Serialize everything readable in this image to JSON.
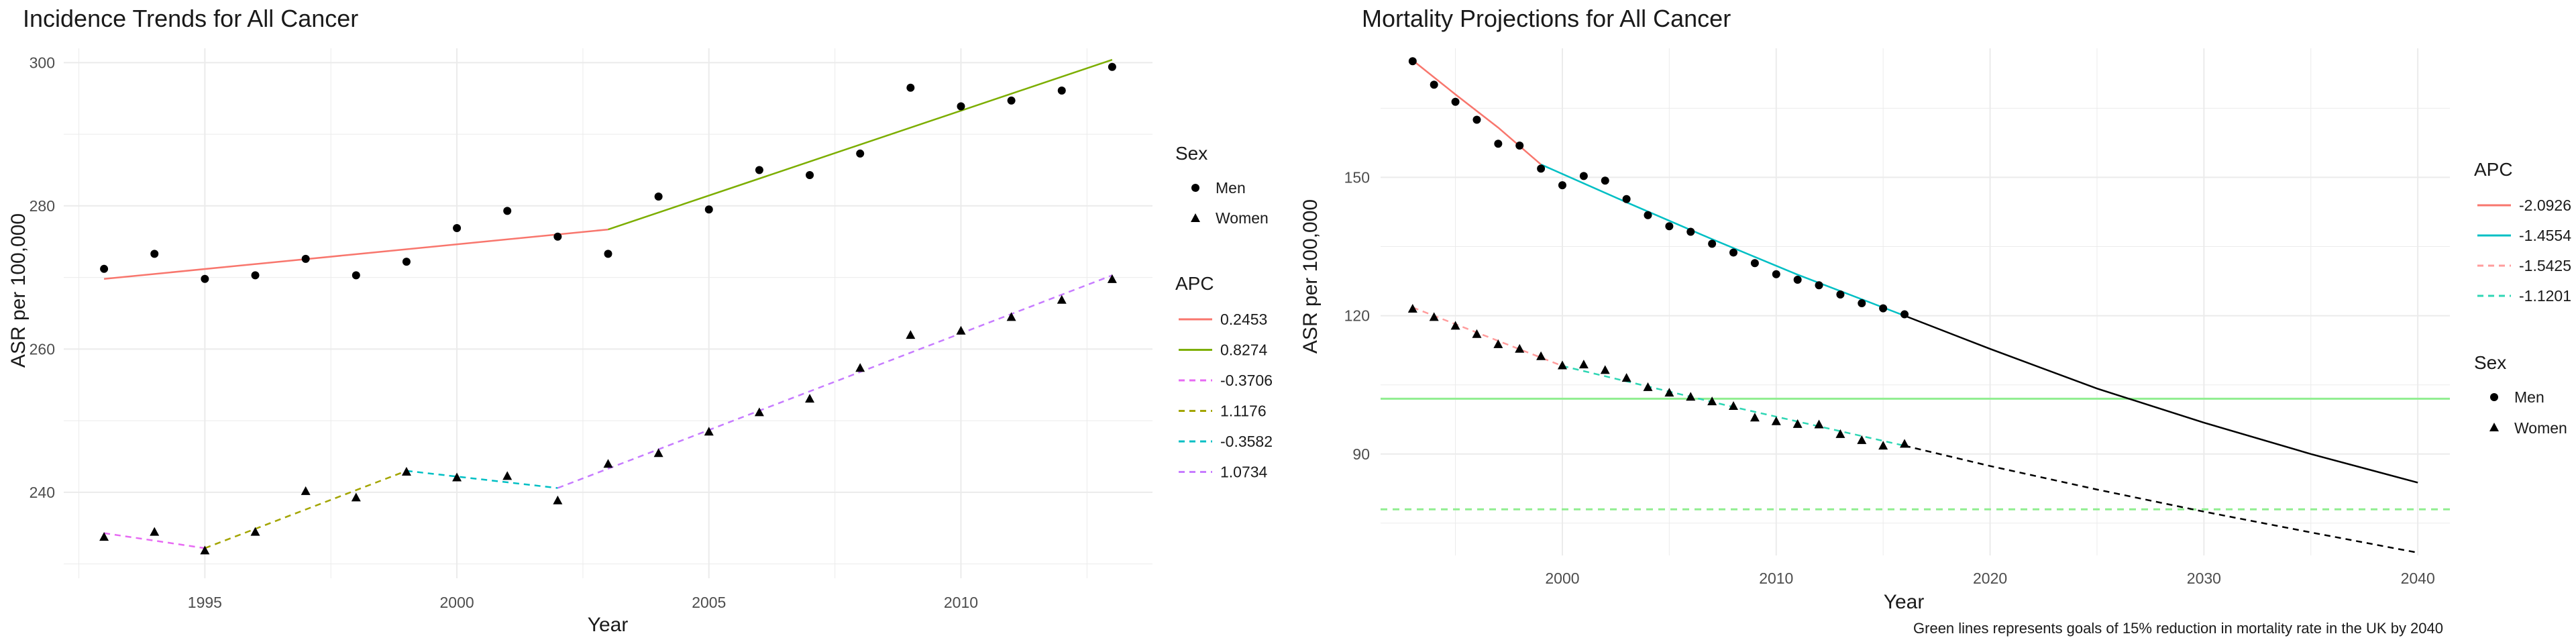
{
  "colors": {
    "seg1": "#F8766D",
    "seg2": "#7CAE00",
    "seg3": "#E76BF3",
    "seg4": "#A3A500",
    "seg5": "#00BFC4",
    "seg6": "#C77CFF",
    "proj1": "#F8766D",
    "proj2": "#00BFC4",
    "proj3": "#FF9C9C",
    "proj4": "#2FD6B4",
    "goal": "#90EE90",
    "forecast": "#000000"
  },
  "chart_data": [
    {
      "type": "scatter",
      "title": "Incidence Trends for All Cancer",
      "xlabel": "Year",
      "ylabel": "ASR per 100,000",
      "xlim": [
        1992.2,
        2013.8
      ],
      "ylim": [
        228,
        302
      ],
      "xticks": [
        1995,
        2000,
        2005,
        2010
      ],
      "yticks": [
        240,
        260,
        280,
        300
      ],
      "grid": true,
      "legend_position": "right",
      "legends": {
        "sex": {
          "title": "Sex",
          "items": [
            "Men",
            "Women"
          ]
        },
        "apc": {
          "title": "APC",
          "items": [
            {
              "label": "0.2453",
              "color_key": "seg1",
              "dashed": false
            },
            {
              "label": "0.8274",
              "color_key": "seg2",
              "dashed": false
            },
            {
              "label": "-0.3706",
              "color_key": "seg3",
              "dashed": true
            },
            {
              "label": "1.1176",
              "color_key": "seg4",
              "dashed": true
            },
            {
              "label": "-0.3582",
              "color_key": "seg5",
              "dashed": true
            },
            {
              "label": "1.0734",
              "color_key": "seg6",
              "dashed": true
            }
          ]
        }
      },
      "series": [
        {
          "name": "Men",
          "marker": "circle",
          "x": [
            1993,
            1994,
            1995,
            1996,
            1997,
            1998,
            1999,
            2000,
            2001,
            2002,
            2003,
            2004,
            2005,
            2006,
            2007,
            2008,
            2009,
            2010,
            2011,
            2012,
            2013
          ],
          "y": [
            271.2,
            273.3,
            269.8,
            270.3,
            272.6,
            270.3,
            272.2,
            276.9,
            279.3,
            275.7,
            273.3,
            281.3,
            279.5,
            285.0,
            284.3,
            287.3,
            296.5,
            293.9,
            294.7,
            296.1,
            299.4
          ]
        },
        {
          "name": "Women",
          "marker": "triangle",
          "x": [
            1993,
            1994,
            1995,
            1996,
            1997,
            1998,
            1999,
            2000,
            2001,
            2002,
            2003,
            2004,
            2005,
            2006,
            2007,
            2008,
            2009,
            2010,
            2011,
            2012,
            2013
          ],
          "y": [
            233.7,
            234.4,
            231.8,
            234.4,
            240.1,
            239.2,
            242.8,
            242.0,
            242.2,
            238.8,
            243.9,
            245.4,
            248.4,
            251.1,
            253.0,
            257.3,
            261.9,
            262.5,
            264.4,
            266.8,
            269.7
          ]
        }
      ],
      "fit_lines": [
        {
          "label": "0.2453",
          "color_key": "seg1",
          "dashed": false,
          "points": [
            [
              1993,
              269.8
            ],
            [
              2003,
              276.7
            ]
          ]
        },
        {
          "label": "0.8274",
          "color_key": "seg2",
          "dashed": false,
          "points": [
            [
              2003,
              276.7
            ],
            [
              2013,
              300.4
            ]
          ]
        },
        {
          "label": "-0.3706",
          "color_key": "seg3",
          "dashed": true,
          "points": [
            [
              1993,
              234.3
            ],
            [
              1995,
              232.2
            ]
          ]
        },
        {
          "label": "1.1176",
          "color_key": "seg4",
          "dashed": true,
          "points": [
            [
              1995,
              232.2
            ],
            [
              1999,
              243.0
            ]
          ]
        },
        {
          "label": "-0.3582",
          "color_key": "seg5",
          "dashed": true,
          "points": [
            [
              1999,
              243.0
            ],
            [
              2002,
              240.6
            ]
          ]
        },
        {
          "label": "1.0734",
          "color_key": "seg6",
          "dashed": true,
          "points": [
            [
              2002,
              240.6
            ],
            [
              2013,
              270.3
            ]
          ]
        }
      ]
    },
    {
      "type": "scatter",
      "title": "Mortality Projections for All Cancer",
      "xlabel": "Year",
      "ylabel": "ASR per 100,000",
      "caption": "Green lines represents goals of 15% reduction in mortality rate in the UK by 2040",
      "xlim": [
        1991.5,
        2041.5
      ],
      "ylim": [
        68,
        178
      ],
      "xticks": [
        2000,
        2010,
        2020,
        2030,
        2040
      ],
      "yticks": [
        90,
        120,
        150
      ],
      "grid": true,
      "legend_position": "right",
      "legends": {
        "apc": {
          "title": "APC",
          "items": [
            {
              "label": "-2.0926",
              "color_key": "proj1",
              "dashed": false
            },
            {
              "label": "-1.4554",
              "color_key": "proj2",
              "dashed": false
            },
            {
              "label": "-1.5425",
              "color_key": "proj3",
              "dashed": true
            },
            {
              "label": "-1.1201",
              "color_key": "proj4",
              "dashed": true
            }
          ]
        },
        "sex": {
          "title": "Sex",
          "items": [
            "Men",
            "Women"
          ]
        }
      },
      "series": [
        {
          "name": "Men",
          "marker": "circle",
          "x": [
            1993,
            1994,
            1995,
            1996,
            1997,
            1998,
            1999,
            2000,
            2001,
            2002,
            2003,
            2004,
            2005,
            2006,
            2007,
            2008,
            2009,
            2010,
            2011,
            2012,
            2013,
            2014,
            2015,
            2016
          ],
          "y": [
            175.2,
            170.1,
            166.4,
            162.5,
            157.3,
            156.9,
            151.9,
            148.3,
            150.3,
            149.3,
            145.3,
            141.8,
            139.4,
            138.2,
            135.6,
            133.7,
            131.4,
            129.0,
            127.8,
            126.6,
            124.6,
            122.7,
            121.6,
            120.3
          ]
        },
        {
          "name": "Women",
          "marker": "triangle",
          "x": [
            1993,
            1994,
            1995,
            1996,
            1997,
            1998,
            1999,
            2000,
            2001,
            2002,
            2003,
            2004,
            2005,
            2006,
            2007,
            2008,
            2009,
            2010,
            2011,
            2012,
            2013,
            2014,
            2015,
            2016
          ],
          "y": [
            121.4,
            119.6,
            117.7,
            115.9,
            113.7,
            112.7,
            111.1,
            109.1,
            109.3,
            108.1,
            106.4,
            104.4,
            103.2,
            102.3,
            101.3,
            100.3,
            97.8,
            97.0,
            96.4,
            96.3,
            94.2,
            92.9,
            91.7,
            92.1
          ]
        }
      ],
      "fit_lines": [
        {
          "label": "-2.0926",
          "color_key": "proj1",
          "dashed": false,
          "points": [
            [
              1993,
              175.4
            ],
            [
              1995,
              168.0
            ],
            [
              1997,
              160.8
            ],
            [
              1999,
              152.8
            ]
          ]
        },
        {
          "label": "-1.4554",
          "color_key": "proj2",
          "dashed": false,
          "points": [
            [
              1999,
              152.8
            ],
            [
              2003,
              144.6
            ],
            [
              2007,
              136.6
            ],
            [
              2011,
              128.9
            ],
            [
              2016,
              120.0
            ]
          ]
        },
        {
          "label": "-1.5425",
          "color_key": "proj3",
          "dashed": true,
          "points": [
            [
              1993,
              121.8
            ],
            [
              2000,
              109.1
            ]
          ]
        },
        {
          "label": "-1.1201",
          "color_key": "proj4",
          "dashed": true,
          "points": [
            [
              2000,
              109.1
            ],
            [
              2008,
              100.2
            ],
            [
              2016,
              91.8
            ]
          ]
        },
        {
          "label": "",
          "color_key": "forecast",
          "dashed": false,
          "points": [
            [
              2016,
              120.0
            ],
            [
              2020,
              112.8
            ],
            [
              2025,
              104.2
            ],
            [
              2030,
              96.8
            ],
            [
              2035,
              90.0
            ],
            [
              2040,
              83.8
            ]
          ]
        },
        {
          "label": "",
          "color_key": "forecast",
          "dashed": true,
          "points": [
            [
              2016,
              91.8
            ],
            [
              2020,
              87.4
            ],
            [
              2025,
              82.3
            ],
            [
              2030,
              77.5
            ],
            [
              2035,
              73.0
            ],
            [
              2040,
              68.6
            ]
          ]
        }
      ],
      "reference_lines": [
        {
          "y": 102.0,
          "color_key": "goal",
          "dashed": false
        },
        {
          "y": 78.0,
          "color_key": "goal",
          "dashed": true
        }
      ]
    }
  ]
}
